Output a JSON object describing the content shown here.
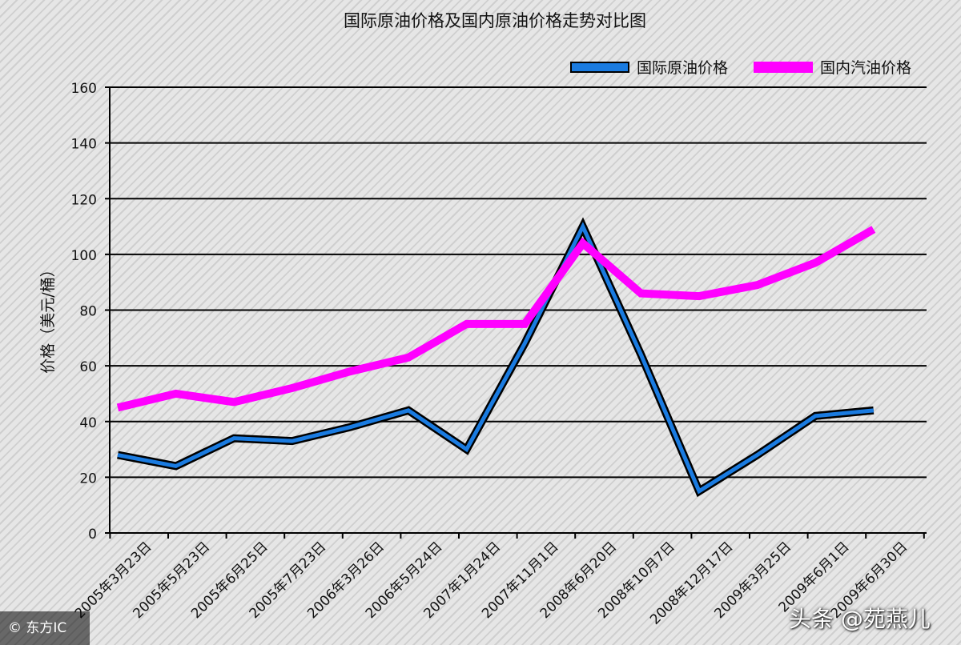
{
  "chart_data": {
    "type": "line",
    "title": "国际原油价格及国内原油价格走势对比图",
    "ylabel": "价格（美元/桶）",
    "xlabel": "",
    "ylim": [
      0,
      160
    ],
    "yticks": [
      "0",
      "20",
      "40",
      "60",
      "80",
      "100",
      "120",
      "140",
      "160"
    ],
    "grid": true,
    "legend_position": "top-right",
    "categories": [
      "2005年3月23日",
      "2005年5月23日",
      "2005年6月25日",
      "2005年7月23日",
      "2006年3月26日",
      "2006年5月24日",
      "2007年1月24日",
      "2007年11月1日",
      "2008年6月20日",
      "2008年10月7日",
      "2008年12月17日",
      "2009年3月25日",
      "2009年6月1日",
      "2009年6月30日"
    ],
    "series": [
      {
        "name": "国际原油价格",
        "color": "#1a7be0",
        "values": [
          28,
          24,
          34,
          33,
          38,
          44,
          30,
          68,
          110,
          64,
          15,
          28,
          42,
          44
        ]
      },
      {
        "name": "国内汽油价格",
        "color": "#ff00ff",
        "values": [
          45,
          50,
          47,
          52,
          58,
          63,
          75,
          75,
          104,
          86,
          85,
          89,
          97,
          109
        ]
      }
    ]
  },
  "watermark": {
    "left": "© 东方IC",
    "right": "头条 @苑燕儿"
  }
}
